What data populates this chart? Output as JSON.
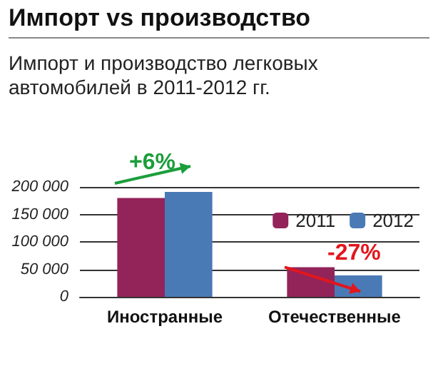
{
  "chart_data": {
    "type": "bar",
    "title": "Импорт vs производство",
    "subtitle": "Импорт и производство легковых автомобилей в 2011-2012 гг.",
    "categories": [
      "Иностранные",
      "Отечественные"
    ],
    "series": [
      {
        "name": "2011",
        "color": "#93245a",
        "values": [
          180000,
          54000
        ]
      },
      {
        "name": "2012",
        "color": "#4a7ab5",
        "values": [
          191000,
          39000
        ]
      }
    ],
    "ylim": [
      0,
      200000
    ],
    "yticks": [
      {
        "value": 0,
        "label": "0"
      },
      {
        "value": 50000,
        "label": "50 000"
      },
      {
        "value": 100000,
        "label": "100 000"
      },
      {
        "value": 150000,
        "label": "150 000"
      },
      {
        "value": 200000,
        "label": "200 000"
      }
    ],
    "grid": "y",
    "legend": "top right",
    "annotations": [
      {
        "text": "+6%",
        "x": "Иностранные",
        "y": 191000
      },
      {
        "text": "-27%",
        "x": "Отечественные",
        "y": 54000
      }
    ]
  }
}
